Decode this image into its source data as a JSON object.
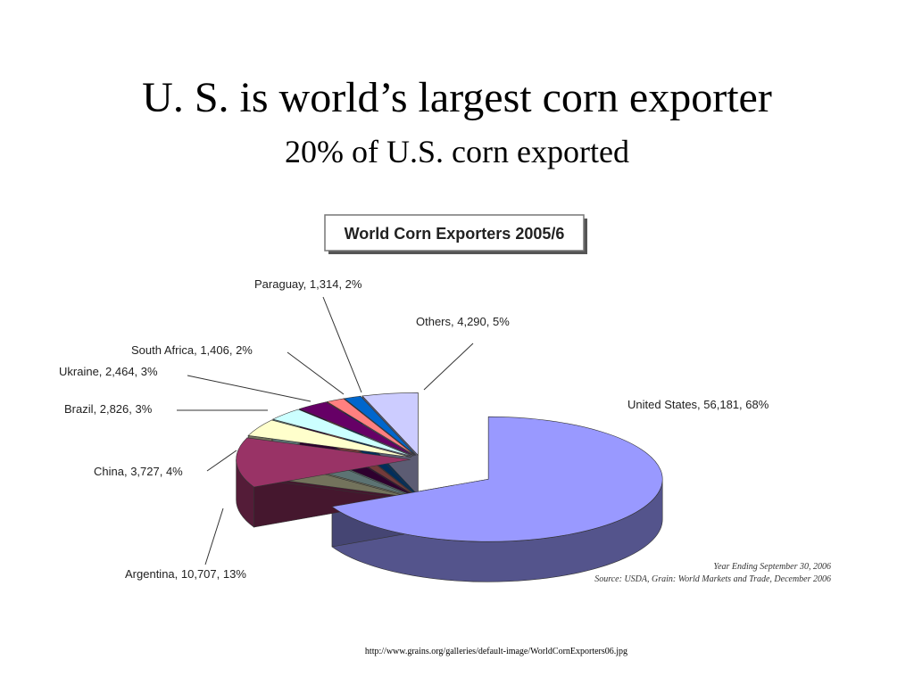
{
  "slide": {
    "title": "U. S. is world’s largest corn exporter",
    "subtitle": "20% of U.S. corn exported",
    "footer": "http://www.grains.org/galleries/default-image/WorldCornExporters06.jpg"
  },
  "chart_data": {
    "type": "pie",
    "title": "World Corn Exporters 2005/6",
    "labels": [
      "United States, 56,181, 68%",
      "Argentina, 10,707, 13%",
      "China, 3,727, 4%",
      "Brazil, 2,826, 3%",
      "Ukraine, 2,464, 3%",
      "South Africa, 1,406, 2%",
      "Paraguay, 1,314, 2%",
      "Others, 4,290, 5%"
    ],
    "values": [
      56181,
      10707,
      3727,
      2826,
      2464,
      1406,
      1314,
      4290
    ],
    "colors": [
      "#9999ff",
      "#993366",
      "#ffffcc",
      "#ccffff",
      "#660066",
      "#ff8080",
      "#0066cc",
      "#ccccff"
    ],
    "notes": [
      "Year Ending September 30, 2006",
      "Source: USDA, Grain: World Markets and Trade, December 2006"
    ]
  }
}
